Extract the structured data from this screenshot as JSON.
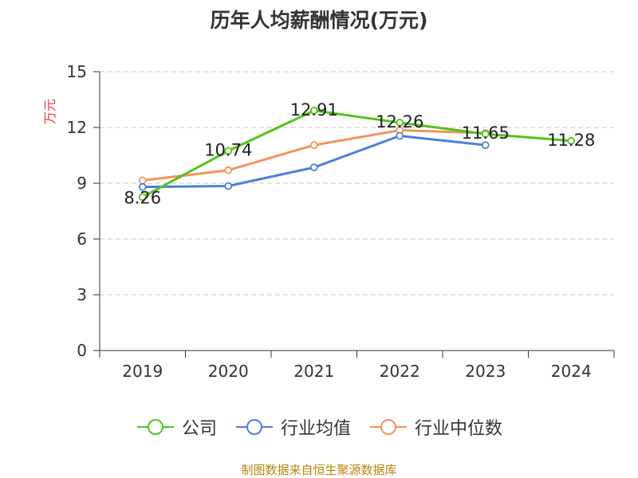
{
  "chart_data": {
    "type": "line",
    "title": "历年人均薪酬情况(万元)",
    "ylabel": "万元",
    "xlabel": "",
    "categories": [
      "2019",
      "2020",
      "2021",
      "2022",
      "2023",
      "2024"
    ],
    "ylim": [
      0,
      15
    ],
    "yticks": [
      0,
      3,
      6,
      9,
      12,
      15
    ],
    "grid": true,
    "legend_position": "bottom",
    "series": [
      {
        "name": "公司",
        "color": "#52c41a",
        "values": [
          8.26,
          10.74,
          12.91,
          12.26,
          11.65,
          11.28
        ],
        "show_labels": true
      },
      {
        "name": "行业均值",
        "color": "#4e7fd8",
        "values": [
          8.8,
          8.85,
          9.85,
          11.55,
          11.05,
          null
        ],
        "show_labels": false
      },
      {
        "name": "行业中位数",
        "color": "#f5925e",
        "values": [
          9.15,
          9.7,
          11.05,
          11.85,
          11.7,
          null
        ],
        "show_labels": false
      }
    ],
    "source": "制图数据来自恒生聚源数据库"
  }
}
